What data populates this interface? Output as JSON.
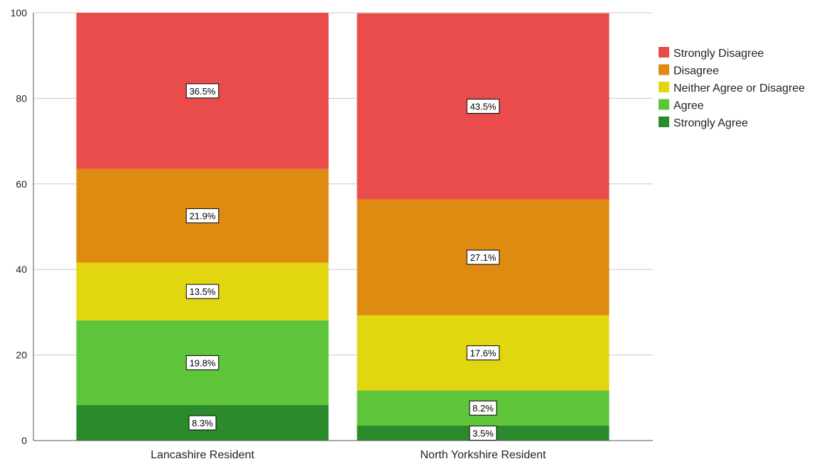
{
  "chart_data": {
    "type": "bar",
    "stacked": true,
    "categories": [
      "Lancashire Resident",
      "North Yorkshire Resident"
    ],
    "series": [
      {
        "name": "Strongly Agree",
        "values": [
          8.3,
          3.5
        ],
        "labels": [
          "8.3%",
          "3.5%"
        ],
        "color": "#2b8a2b"
      },
      {
        "name": "Agree",
        "values": [
          19.8,
          8.2
        ],
        "labels": [
          "19.8%",
          "8.2%"
        ],
        "color": "#5ec43a"
      },
      {
        "name": "Neither Agree or Disagree",
        "values": [
          13.5,
          17.6
        ],
        "labels": [
          "13.5%",
          "17.6%"
        ],
        "color": "#e2d610"
      },
      {
        "name": "Disagree",
        "values": [
          21.9,
          27.1
        ],
        "labels": [
          "21.9%",
          "27.1%"
        ],
        "color": "#df8a10"
      },
      {
        "name": "Strongly Disagree",
        "values": [
          36.5,
          43.5
        ],
        "labels": [
          "36.5%",
          "43.5%"
        ],
        "color": "#ea4b4b"
      }
    ],
    "legend_order": [
      "Strongly Disagree",
      "Disagree",
      "Neither Agree or Disagree",
      "Agree",
      "Strongly Agree"
    ],
    "ylim": [
      0,
      100
    ],
    "yticks": [
      "0",
      "20",
      "40",
      "60",
      "80",
      "100"
    ],
    "grid": true,
    "legend": "right",
    "title": "",
    "xlabel": "",
    "ylabel": ""
  }
}
